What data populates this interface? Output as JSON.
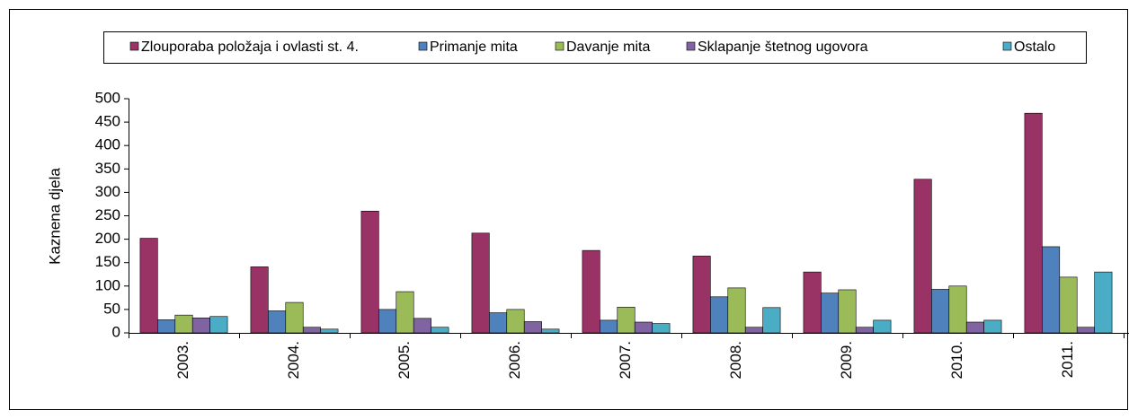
{
  "chart_data": {
    "type": "bar",
    "y_label": "Kaznena djela",
    "categories": [
      "2003.",
      "2004.",
      "2005.",
      "2006.",
      "2007.",
      "2008.",
      "2009.",
      "2010.",
      "2011."
    ],
    "series": [
      {
        "name": "Zlouporaba položaja i ovlasti st. 4.",
        "color": "#993366",
        "values": [
          202,
          141,
          260,
          213,
          176,
          164,
          130,
          328,
          469
        ]
      },
      {
        "name": "Primanje mita",
        "color": "#4f81bd",
        "values": [
          28,
          47,
          50,
          43,
          27,
          77,
          85,
          93,
          184
        ]
      },
      {
        "name": "Davanje mita",
        "color": "#9bbb59",
        "values": [
          38,
          65,
          88,
          50,
          55,
          96,
          92,
          100,
          119
        ]
      },
      {
        "name": "Sklapanje štetnog ugovora",
        "color": "#8064a2",
        "values": [
          32,
          12,
          31,
          24,
          23,
          12,
          12,
          23,
          12
        ]
      },
      {
        "name": "Ostalo",
        "color": "#4bacc6",
        "values": [
          35,
          8,
          12,
          8,
          20,
          54,
          27,
          27,
          130
        ]
      }
    ],
    "ylim": [
      0,
      500
    ],
    "yticks": [
      0,
      50,
      100,
      150,
      200,
      250,
      300,
      350,
      400,
      450,
      500
    ],
    "grid": false,
    "legend": "top"
  }
}
